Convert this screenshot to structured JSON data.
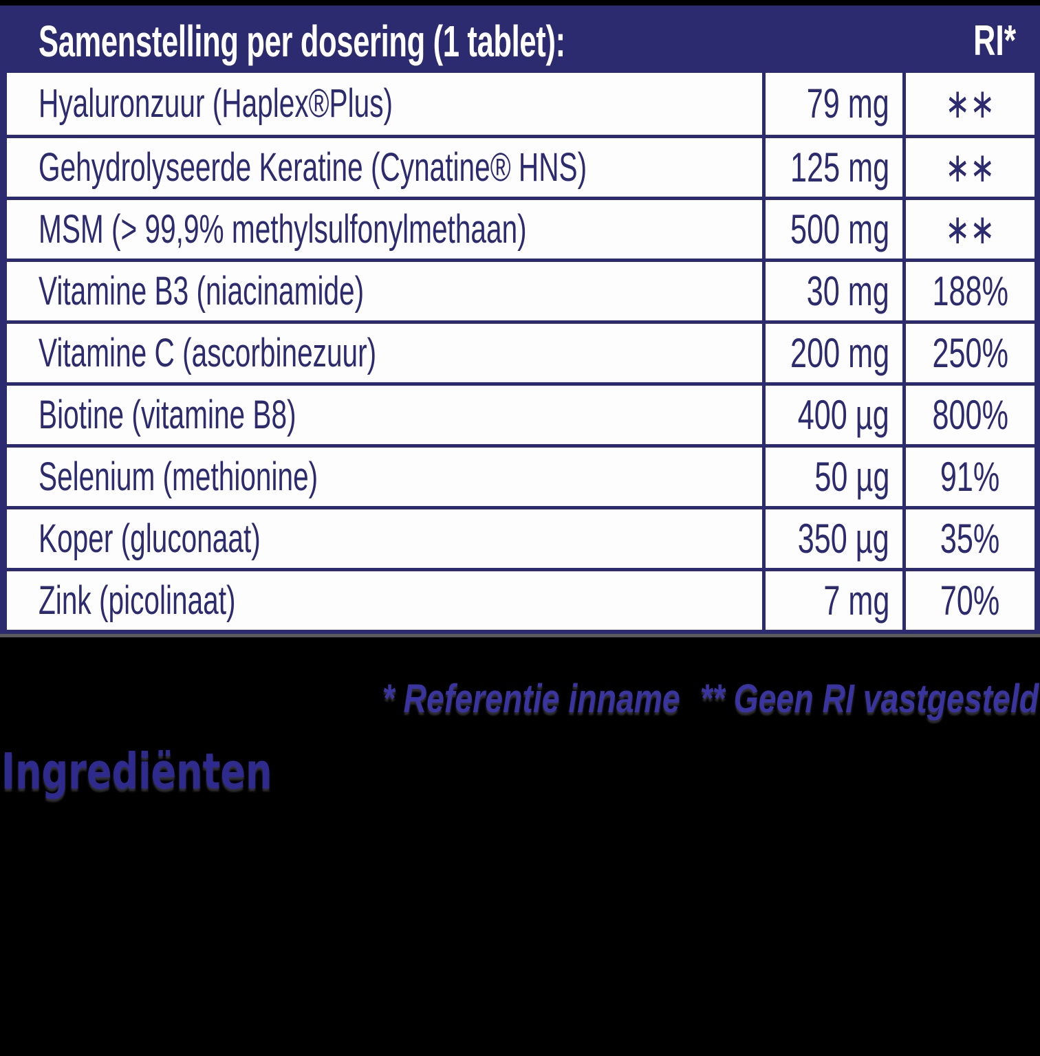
{
  "colors": {
    "table_navy": "#2d2b70",
    "row_background": "#fdfdfe",
    "header_text": "#ffffff",
    "footnote_blue": "#3a34a0",
    "heading_blue": "#2f2b8e",
    "page_background": "#000000"
  },
  "table": {
    "header": {
      "title": "Samenstelling per dosering (1 tablet):",
      "ri": "RI*"
    },
    "rows": [
      {
        "name": "Hyaluronzuur (Haplex®Plus)",
        "amount": "79 mg",
        "ri": "∗∗"
      },
      {
        "name": "Gehydrolyseerde Keratine (Cynatine® HNS)",
        "amount": "125 mg",
        "ri": "∗∗"
      },
      {
        "name": "MSM (> 99,9% methylsulfonylmethaan)",
        "amount": "500 mg",
        "ri": "∗∗"
      },
      {
        "name": "Vitamine B3 (niacinamide)",
        "amount": "30 mg",
        "ri": "188%"
      },
      {
        "name": "Vitamine C (ascorbinezuur)",
        "amount": "200 mg",
        "ri": "250%"
      },
      {
        "name": "Biotine (vitamine B8)",
        "amount": "400 µg",
        "ri": "800%"
      },
      {
        "name": "Selenium (methionine)",
        "amount": "50 µg",
        "ri": "91%"
      },
      {
        "name": "Koper (gluconaat)",
        "amount": "350 µg",
        "ri": "35%"
      },
      {
        "name": "Zink (picolinaat)",
        "amount": "7 mg",
        "ri": "70%"
      }
    ]
  },
  "footnote": {
    "reference": "* Referentie inname",
    "no_ri": "** Geen RI vastgesteld"
  },
  "ingredients_heading": "Ingrediënten"
}
